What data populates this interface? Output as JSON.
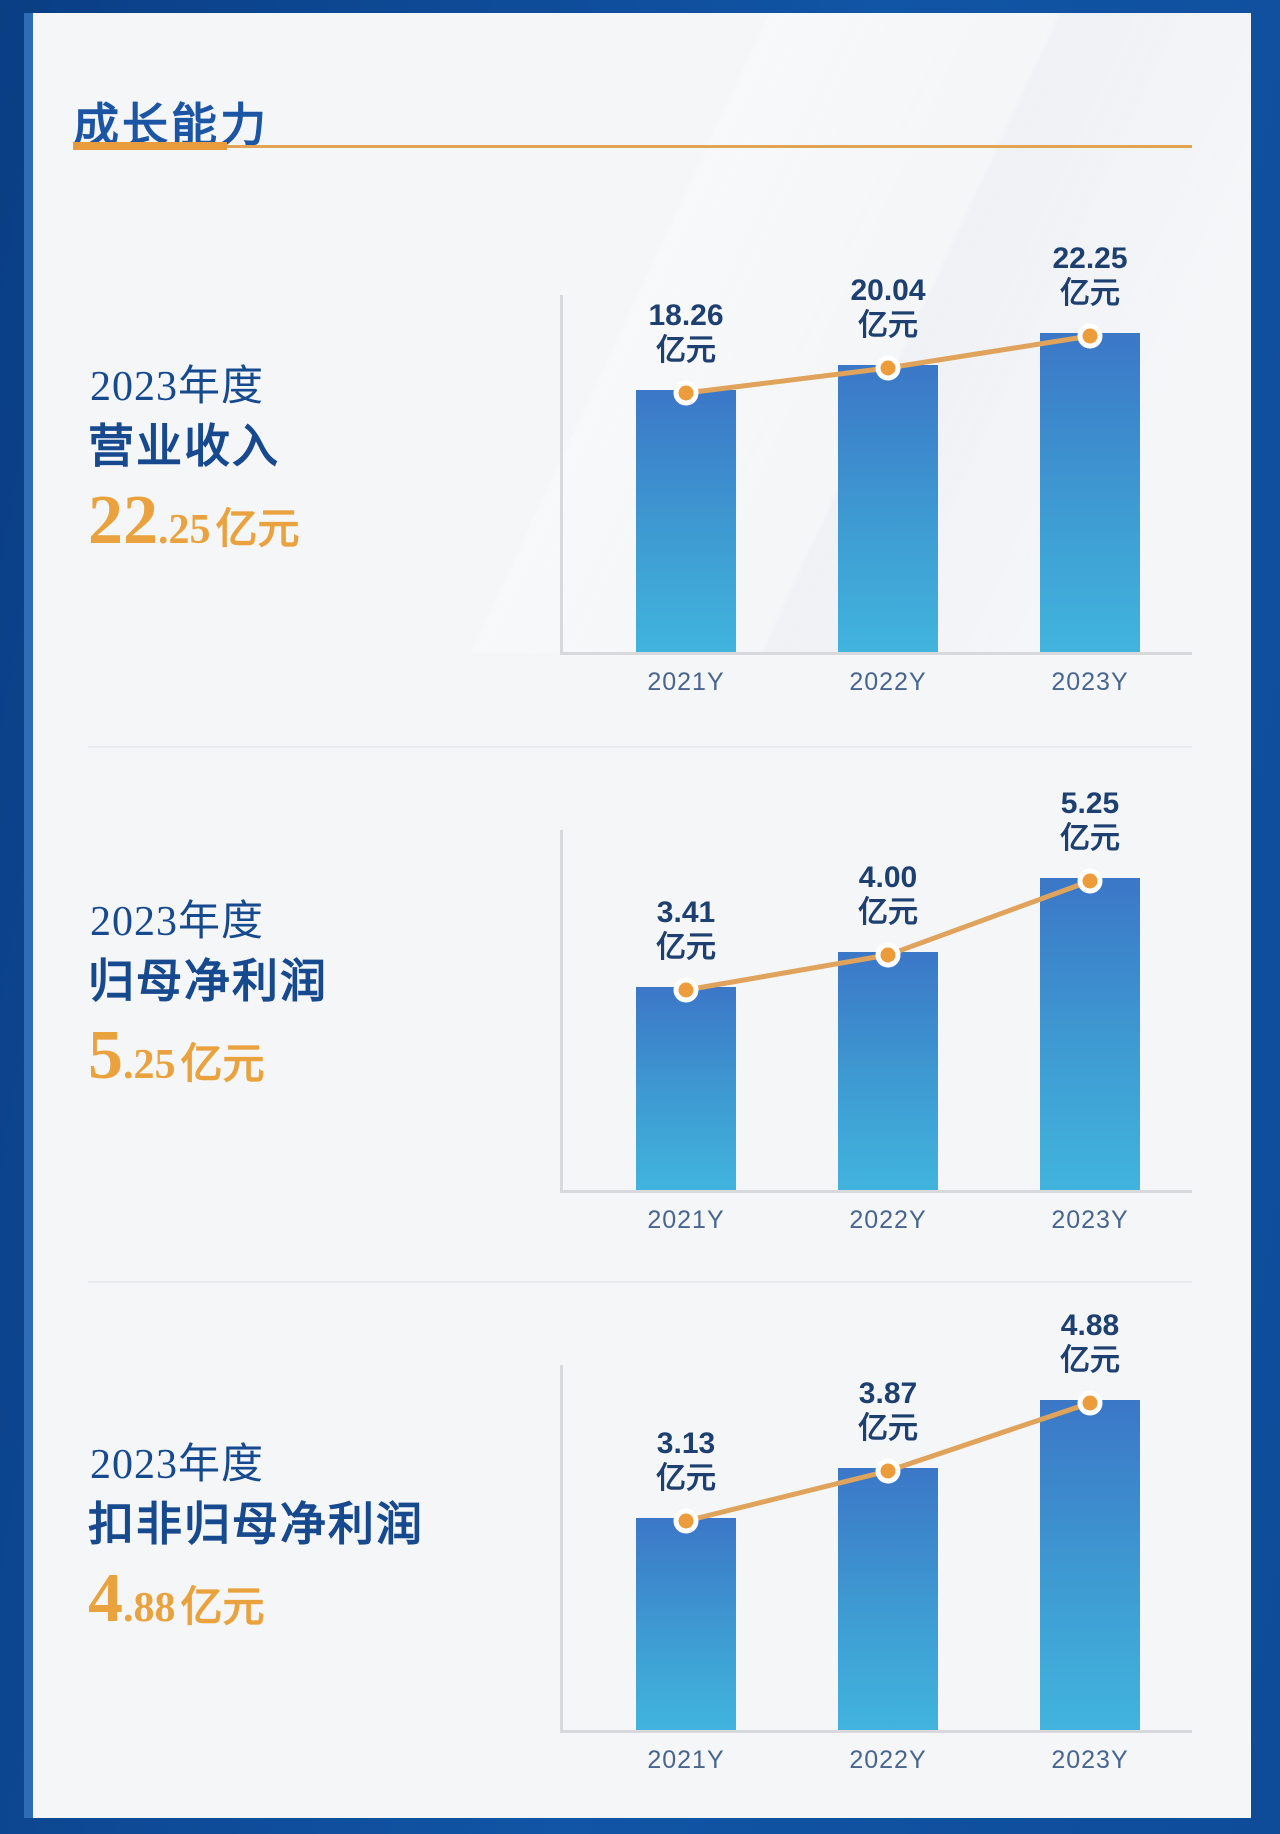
{
  "header": {
    "title": "成长能力"
  },
  "palette": {
    "frame_blue": "#0F4E9E",
    "frame_accent": "#2E6CB6",
    "card_bg": "#F5F6F8",
    "title_color": "#1C55A4",
    "underline_thick": "#E89C3E",
    "underline_thin": "#E3A355",
    "section_text": "#17498F",
    "highlight_orange": "#E9A23D",
    "bar_top": "#3B77C7",
    "bar_bottom": "#41B4DE",
    "axis_gray": "#D8D9DD",
    "value_label_navy": "#1E4070",
    "year_tick_blue": "#48658F",
    "line_orange": "#E0A35C",
    "dot_orange": "#ED9C3B",
    "dot_ring_white": "#FFFFFF",
    "divider_gray": "#E9E9EE"
  },
  "sections": [
    {
      "year_label": "2023年度",
      "metric": "营业收入",
      "highlight": {
        "int": "22",
        "dec": ".25",
        "unit": "亿元"
      }
    },
    {
      "year_label": "2023年度",
      "metric": "归母净利润",
      "highlight": {
        "int": "5",
        "dec": ".25",
        "unit": "亿元"
      }
    },
    {
      "year_label": "2023年度",
      "metric": "扣非归母净利润",
      "highlight": {
        "int": "4",
        "dec": ".88",
        "unit": "亿元"
      }
    }
  ],
  "chart_data": [
    {
      "type": "bar",
      "title": "2023年度营业收入",
      "categories": [
        "2021Y",
        "2022Y",
        "2023Y"
      ],
      "values": [
        18.26,
        20.04,
        22.25
      ],
      "labels": [
        "18.26",
        "20.04",
        "22.25"
      ],
      "unit": "亿元",
      "overlay": "line-with-dots",
      "ylim": [
        0,
        22.25
      ],
      "grid": false,
      "legend": "none"
    },
    {
      "type": "bar",
      "title": "2023年度归母净利润",
      "categories": [
        "2021Y",
        "2022Y",
        "2023Y"
      ],
      "values": [
        3.41,
        4.0,
        5.25
      ],
      "labels": [
        "3.41",
        "4.00",
        "5.25"
      ],
      "unit": "亿元",
      "overlay": "line-with-dots",
      "ylim": [
        0,
        5.25
      ],
      "grid": false,
      "legend": "none"
    },
    {
      "type": "bar",
      "title": "2023年度扣非归母净利润",
      "categories": [
        "2021Y",
        "2022Y",
        "2023Y"
      ],
      "values": [
        3.13,
        3.87,
        4.88
      ],
      "labels": [
        "3.13",
        "3.87",
        "4.88"
      ],
      "unit": "亿元",
      "overlay": "line-with-dots",
      "ylim": [
        0,
        4.88
      ],
      "grid": false,
      "legend": "none"
    }
  ]
}
